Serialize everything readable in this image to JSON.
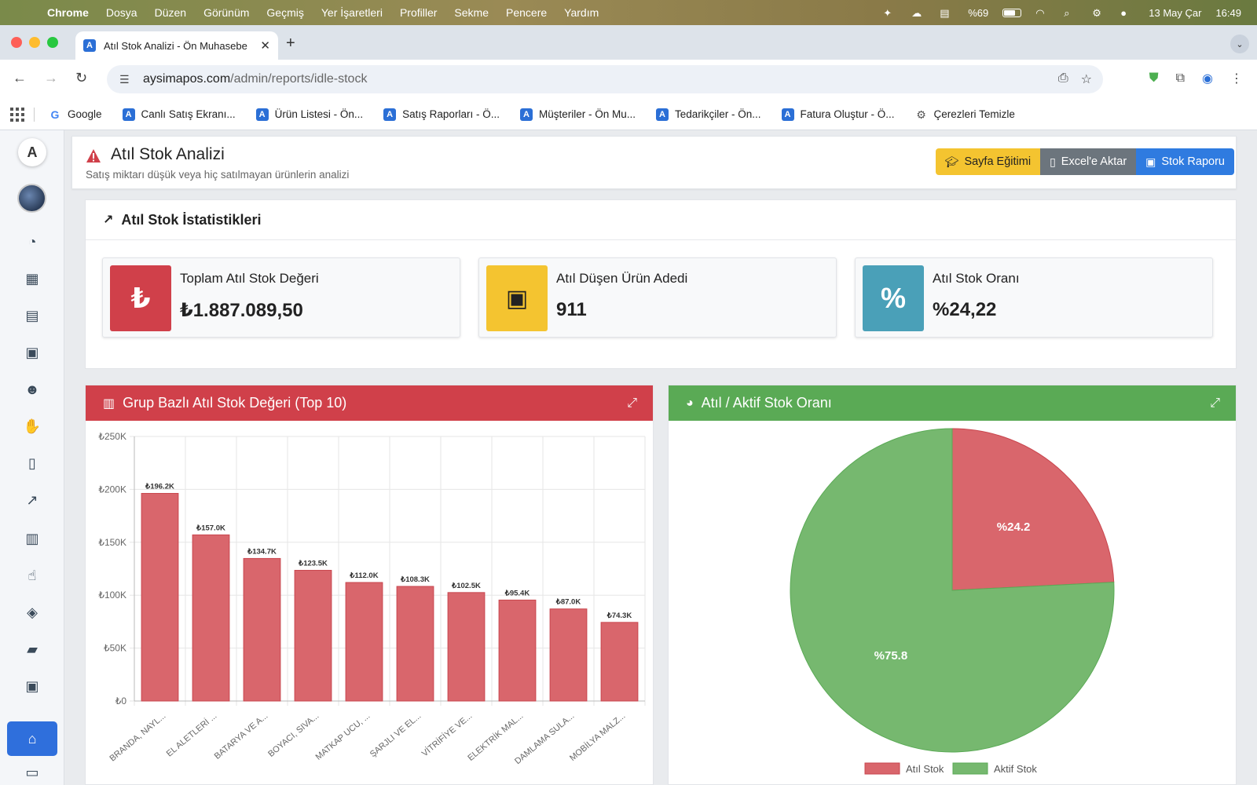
{
  "menubar": {
    "app": "Chrome",
    "items": [
      "Dosya",
      "Düzen",
      "Görünüm",
      "Geçmiş",
      "Yer İşaretleri",
      "Profiller",
      "Sekme",
      "Pencere",
      "Yardım"
    ],
    "battery": "%69",
    "date": "13 May Çar",
    "time": "16:49"
  },
  "browser": {
    "tab_title": "Atıl Stok Analizi - Ön Muhasebe",
    "url_host": "aysimapos.com",
    "url_path": "/admin/reports/idle-stock",
    "bookmarks": [
      "Google",
      "Canlı Satış Ekranı...",
      "Ürün Listesi - Ön...",
      "Satış Raporları - Ö...",
      "Müşteriler - Ön Mu...",
      "Tedarikçiler - Ön...",
      "Fatura Oluştur - Ö...",
      "Çerezleri Temizle"
    ]
  },
  "page": {
    "title": "Atıl Stok Analizi",
    "subtitle": "Satış miktarı düşük veya hiç satılmayan ürünlerin analizi",
    "buttons": {
      "education": "Sayfa Eğitimi",
      "excel": "Excel'e Aktar",
      "report": "Stok Raporu"
    }
  },
  "stats": {
    "title": "Atıl Stok İstatistikleri",
    "boxes": [
      {
        "label": "Toplam Atıl Stok Değeri",
        "value": "₺1.887.089,50",
        "icon": "lira-icon",
        "glyph": "₺",
        "color": "#d0404a"
      },
      {
        "label": "Atıl Düşen Ürün Adedi",
        "value": "911",
        "icon": "boxes-icon",
        "glyph": "▣",
        "color": "#f4c430"
      },
      {
        "label": "Atıl Stok Oranı",
        "value": "%24,22",
        "icon": "percent-icon",
        "glyph": "%",
        "color": "#4aa0b8"
      }
    ]
  },
  "colors": {
    "danger": "#d0404a",
    "success": "#5aaa55",
    "primary": "#2f7be0",
    "bar": "#d9666c",
    "pie_active": "#76b86f"
  },
  "chart_data": [
    {
      "type": "bar",
      "title": "Grup Bazlı Atıl Stok Değeri (Top 10)",
      "categories": [
        "BRANDA, NAYL...",
        "EL ALETLERİ ...",
        "BATARYA VE A...",
        "BOYACI, SIVA...",
        "MATKAP UCU, ...",
        "ŞARJLI VE EL...",
        "VİTRİFİYE VE...",
        "ELEKTRİK MAL...",
        "DAMLAMA SULA...",
        "MOBİLYA MALZ..."
      ],
      "values": [
        196200,
        157000,
        134700,
        123500,
        112000,
        108300,
        102500,
        95400,
        87000,
        74300
      ],
      "value_labels": [
        "₺196.2K",
        "₺157.0K",
        "₺134.7K",
        "₺123.5K",
        "₺112.0K",
        "₺108.3K",
        "₺102.5K",
        "₺95.4K",
        "₺87.0K",
        "₺74.3K"
      ],
      "ylim": [
        0,
        250000
      ],
      "yticks": [
        0,
        50000,
        100000,
        150000,
        200000,
        250000
      ],
      "ytick_labels": [
        "₺0",
        "₺50K",
        "₺100K",
        "₺150K",
        "₺200K",
        "₺250K"
      ],
      "grid": true
    },
    {
      "type": "pie",
      "title": "Atıl / Aktif Stok Oranı",
      "labels": [
        "Atıl Stok",
        "Aktif Stok"
      ],
      "values": [
        24.2,
        75.8
      ],
      "value_labels": [
        "%24.2",
        "%75.8"
      ],
      "legend": "bottom"
    }
  ]
}
